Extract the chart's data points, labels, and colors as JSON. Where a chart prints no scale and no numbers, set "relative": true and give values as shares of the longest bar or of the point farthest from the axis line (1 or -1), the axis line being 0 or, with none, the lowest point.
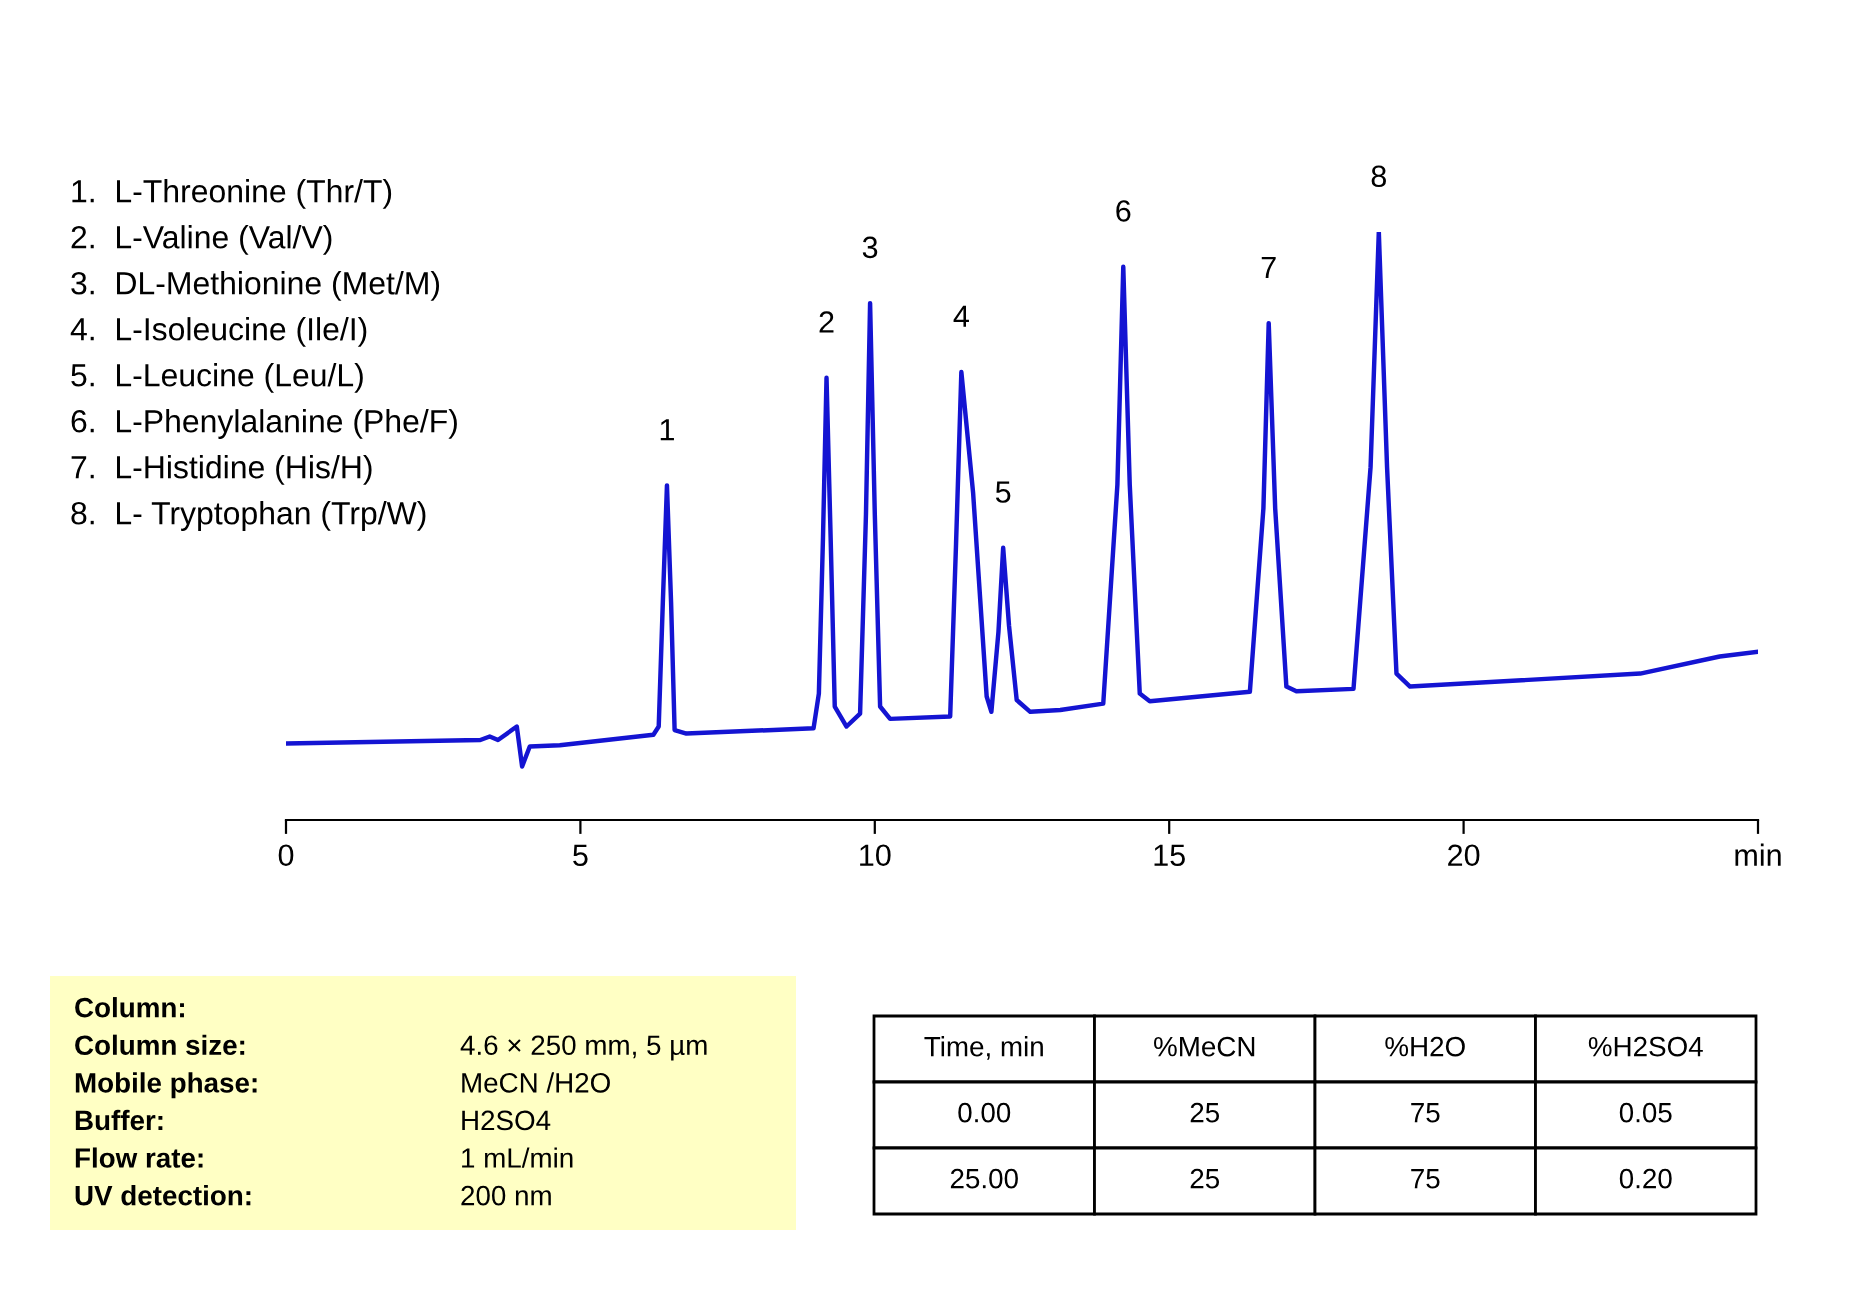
{
  "chart_data": {
    "type": "line",
    "relative": true,
    "x": [
      0,
      3.3,
      3.46,
      3.6,
      3.92,
      4.01,
      4.14,
      4.65,
      6.24,
      6.33,
      6.4,
      6.47,
      6.54,
      6.6,
      6.8,
      8.96,
      9.05,
      9.12,
      9.18,
      9.25,
      9.32,
      9.52,
      9.75,
      9.85,
      9.92,
      10.0,
      10.09,
      10.26,
      11.28,
      11.38,
      11.47,
      11.67,
      11.9,
      11.98,
      12.1,
      12.18,
      12.28,
      12.41,
      12.64,
      13.15,
      13.88,
      14.12,
      14.22,
      14.33,
      14.5,
      14.67,
      16.37,
      16.6,
      16.69,
      16.8,
      16.99,
      17.16,
      18.13,
      18.42,
      18.56,
      18.7,
      18.86,
      19.09,
      23.0,
      24.35,
      24.98
    ],
    "series": [
      {
        "color": "#1414d2",
        "values": [
          0.13,
          0.136,
          0.142,
          0.136,
          0.159,
          0.091,
          0.125,
          0.127,
          0.145,
          0.159,
          0.37,
          0.569,
          0.37,
          0.153,
          0.147,
          0.156,
          0.215,
          0.48,
          0.752,
          0.48,
          0.193,
          0.159,
          0.181,
          0.52,
          0.879,
          0.52,
          0.193,
          0.172,
          0.176,
          0.47,
          0.762,
          0.556,
          0.21,
          0.184,
          0.32,
          0.463,
          0.33,
          0.204,
          0.184,
          0.187,
          0.198,
          0.57,
          0.941,
          0.57,
          0.215,
          0.202,
          0.218,
          0.53,
          0.845,
          0.53,
          0.227,
          0.219,
          0.223,
          0.6,
          1.0,
          0.6,
          0.249,
          0.227,
          0.249,
          0.278,
          0.286
        ]
      }
    ],
    "xlim": [
      0,
      25
    ],
    "xticks": [
      0,
      5,
      10,
      15,
      20,
      {
        "value": 25,
        "label": "min"
      }
    ],
    "grid": false,
    "legend": false,
    "marker": "none",
    "line_style": "solid",
    "annotations": [
      {
        "text": "1",
        "x": 6.47,
        "y": 0.569
      },
      {
        "text": "2",
        "x": 9.18,
        "y": 0.752
      },
      {
        "text": "3",
        "x": 9.92,
        "y": 0.879
      },
      {
        "text": "4",
        "x": 11.47,
        "y": 0.762
      },
      {
        "text": "5",
        "x": 12.18,
        "y": 0.463
      },
      {
        "text": "6",
        "x": 14.22,
        "y": 0.941
      },
      {
        "text": "7",
        "x": 16.69,
        "y": 0.845
      },
      {
        "text": "8",
        "x": 18.56,
        "y": 1.0
      },
      "1.  L-Threonine (Thr/T)",
      "2.  L-Valine (Val/V)",
      "3.  DL-Methionine (Met/M)",
      "4.  L-Isoleucine (Ile/I)",
      "5.  L-Leucine (Leu/L)",
      "6.  L-Phenylalanine (Phe/F)",
      "7.  L-Histidine (His/H)",
      "8.  L- Tryptophan (Trp/W)",
      "Column:",
      "Column size:",
      "4.6 × 250 mm, 5 µm",
      "Mobile phase:",
      "MeCN /H2O",
      "Buffer:",
      "H2SO4",
      "Flow rate:",
      "1 mL/min",
      "UV detection:",
      "200 nm",
      "Time, min",
      "%MeCN",
      "%H2O",
      "%H2SO4",
      "0.00",
      "25",
      "75",
      "0.05",
      "25.00",
      "25",
      "75",
      "0.20"
    ]
  }
}
